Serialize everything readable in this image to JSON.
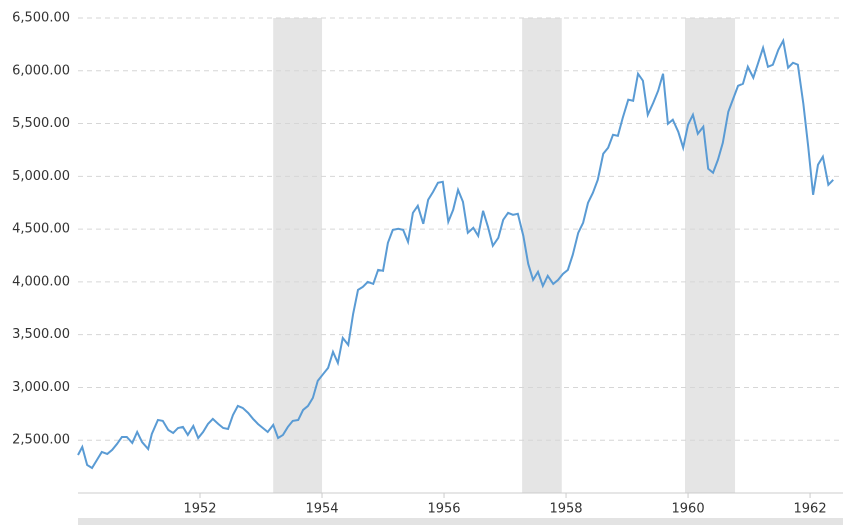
{
  "chart_data": {
    "type": "line",
    "x": [
      1950.0,
      1950.07,
      1950.15,
      1950.23,
      1950.31,
      1950.39,
      1950.48,
      1950.56,
      1950.64,
      1950.72,
      1950.8,
      1950.89,
      1950.97,
      1951.05,
      1951.15,
      1951.21,
      1951.31,
      1951.39,
      1951.48,
      1951.56,
      1951.64,
      1951.72,
      1951.8,
      1951.89,
      1951.97,
      1952.05,
      1952.13,
      1952.21,
      1952.3,
      1952.38,
      1952.46,
      1952.54,
      1952.62,
      1952.7,
      1952.79,
      1952.87,
      1952.95,
      1953.03,
      1953.11,
      1953.2,
      1953.28,
      1953.36,
      1953.44,
      1953.52,
      1953.61,
      1953.69,
      1953.77,
      1953.85,
      1953.93,
      1954.02,
      1954.1,
      1954.18,
      1954.26,
      1954.34,
      1954.43,
      1954.51,
      1954.59,
      1954.67,
      1954.75,
      1954.84,
      1954.92,
      1955.0,
      1955.08,
      1955.16,
      1955.25,
      1955.33,
      1955.41,
      1955.49,
      1955.57,
      1955.66,
      1955.74,
      1955.82,
      1955.9,
      1955.98,
      1956.07,
      1956.15,
      1956.23,
      1956.31,
      1956.39,
      1956.48,
      1956.56,
      1956.64,
      1956.72,
      1956.8,
      1956.89,
      1956.97,
      1957.05,
      1957.13,
      1957.21,
      1957.3,
      1957.38,
      1957.46,
      1957.54,
      1957.62,
      1957.7,
      1957.79,
      1957.87,
      1957.95,
      1958.03,
      1958.11,
      1958.2,
      1958.28,
      1958.36,
      1958.44,
      1958.52,
      1958.61,
      1958.69,
      1958.77,
      1958.85,
      1958.93,
      1959.02,
      1959.1,
      1959.18,
      1959.26,
      1959.34,
      1959.43,
      1959.51,
      1959.59,
      1959.67,
      1959.75,
      1959.84,
      1959.92,
      1960.0,
      1960.08,
      1960.16,
      1960.25,
      1960.33,
      1960.41,
      1960.49,
      1960.57,
      1960.66,
      1960.74,
      1960.82,
      1960.9,
      1960.98,
      1961.07,
      1961.15,
      1961.23,
      1961.31,
      1961.39,
      1961.48,
      1961.56,
      1961.64,
      1961.72,
      1961.8,
      1961.89,
      1961.97,
      1962.05,
      1962.13,
      1962.21,
      1962.3,
      1962.38
    ],
    "series": [
      {
        "color": "#5a9bd4",
        "values": [
          2360,
          2436,
          2265,
          2237,
          2313,
          2389,
          2370,
          2408,
          2465,
          2531,
          2531,
          2474,
          2578,
          2483,
          2417,
          2559,
          2692,
          2683,
          2597,
          2569,
          2616,
          2626,
          2550,
          2635,
          2521,
          2578,
          2654,
          2702,
          2654,
          2616,
          2607,
          2739,
          2825,
          2806,
          2758,
          2702,
          2654,
          2616,
          2578,
          2645,
          2521,
          2550,
          2626,
          2683,
          2692,
          2787,
          2825,
          2901,
          3062,
          3128,
          3185,
          3337,
          3232,
          3469,
          3403,
          3697,
          3924,
          3953,
          4000,
          3981,
          4114,
          4105,
          4370,
          4493,
          4503,
          4493,
          4379,
          4654,
          4721,
          4550,
          4778,
          4853,
          4939,
          4948,
          4569,
          4683,
          4872,
          4759,
          4465,
          4512,
          4436,
          4673,
          4522,
          4342,
          4417,
          4588,
          4654,
          4635,
          4645,
          4436,
          4171,
          4019,
          4095,
          3962,
          4057,
          3981,
          4019,
          4076,
          4114,
          4256,
          4465,
          4560,
          4749,
          4844,
          4967,
          5214,
          5271,
          5394,
          5384,
          5555,
          5726,
          5716,
          5972,
          5906,
          5583,
          5697,
          5811,
          5972,
          5498,
          5536,
          5422,
          5271,
          5489,
          5583,
          5403,
          5470,
          5072,
          5034,
          5157,
          5318,
          5612,
          5735,
          5858,
          5877,
          6038,
          5934,
          6076,
          6218,
          6038,
          6057,
          6199,
          6285,
          6029,
          6076,
          6057,
          5688,
          5280,
          4825,
          5110,
          5186,
          4920,
          4967
        ]
      }
    ],
    "shaded_ranges": [
      [
        1953.2,
        1954.0
      ],
      [
        1957.28,
        1957.93
      ],
      [
        1959.95,
        1960.77
      ]
    ],
    "shade_color": "#e5e5e5",
    "xlim": [
      1950,
      1962.54
    ],
    "xticks": [
      1952,
      1954,
      1956,
      1958,
      1960,
      1962
    ],
    "ylim": [
      2000,
      6500
    ],
    "yticks": [
      {
        "value": 2500,
        "label": "2,500.00"
      },
      {
        "value": 3000,
        "label": "3,000.00"
      },
      {
        "value": 3500,
        "label": "3,500.00"
      },
      {
        "value": 4000,
        "label": "4,000.00"
      },
      {
        "value": 4500,
        "label": "4,500.00"
      },
      {
        "value": 5000,
        "label": "5,000.00"
      },
      {
        "value": 5500,
        "label": "5,500.00"
      },
      {
        "value": 6000,
        "label": "6,000.00"
      },
      {
        "value": 6500,
        "label": "6,500.00"
      }
    ],
    "grid": true
  }
}
